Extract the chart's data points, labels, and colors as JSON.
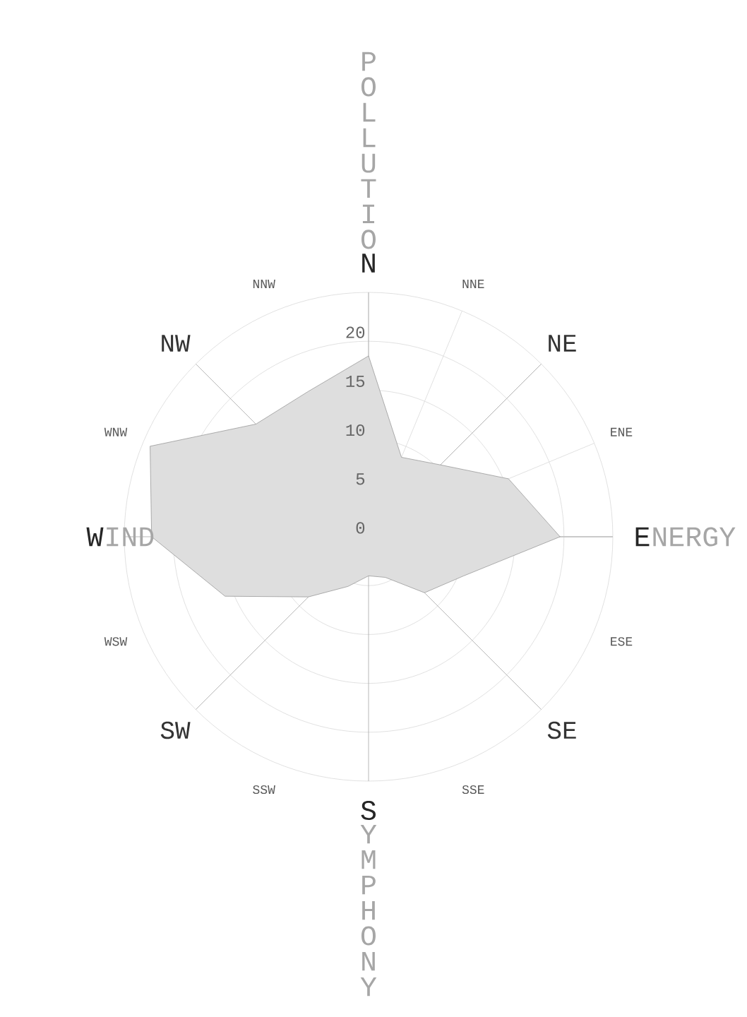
{
  "chart_data": {
    "type": "radar",
    "categories": [
      "N",
      "NNE",
      "NE",
      "ENE",
      "E",
      "ESE",
      "SE",
      "SSE",
      "S",
      "SSW",
      "SW",
      "WSW",
      "W",
      "WNW",
      "NW",
      "NNW"
    ],
    "series": [
      {
        "color": "#dedede",
        "values": [
          18.5,
          8.8,
          10.4,
          15.5,
          19.6,
          10.5,
          8.1,
          4.5,
          4,
          5.5,
          8.7,
          15.9,
          22.2,
          24.2,
          16.3,
          16.1
        ]
      }
    ],
    "ylim": [
      0,
      25
    ],
    "yticks": [
      0,
      5,
      10,
      15,
      20
    ],
    "grid": true,
    "annotations": [
      "POLLUTIO",
      "NERGY",
      "YMPHONY",
      "IND"
    ]
  }
}
